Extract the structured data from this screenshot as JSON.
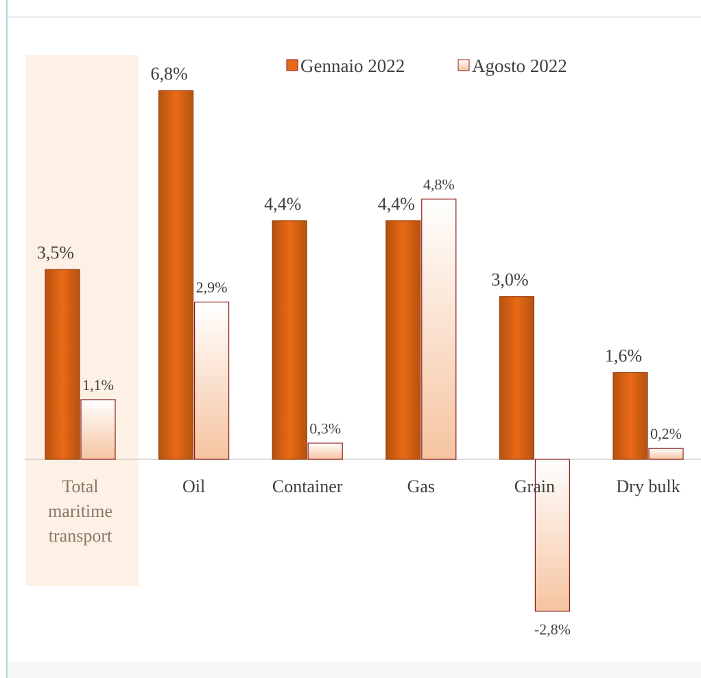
{
  "chart_data": {
    "type": "bar",
    "categories": [
      "Total maritime transport",
      "Oil",
      "Container",
      "Gas",
      "Grain",
      "Dry bulk"
    ],
    "series": [
      {
        "name": "Gennaio 2022",
        "color": "#e96a15",
        "values": [
          3.5,
          6.8,
          4.4,
          4.4,
          3.0,
          1.6
        ],
        "value_labels": [
          "3,5%",
          "6,8%",
          "4,4%",
          "4,4%",
          "3,0%",
          "1,6%"
        ]
      },
      {
        "name": "Agosto 2022",
        "color": "#f6c4a0",
        "values": [
          1.1,
          2.9,
          0.3,
          4.8,
          -2.8,
          0.2
        ],
        "value_labels": [
          "1,1%",
          "2,9%",
          "0,3%",
          "4,8%",
          "-2,8%",
          "0,2%"
        ]
      }
    ],
    "legend": "top"
  }
}
